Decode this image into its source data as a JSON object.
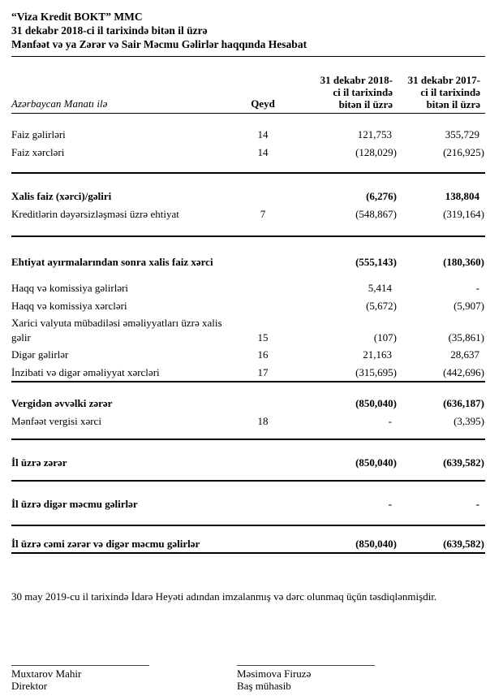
{
  "header": {
    "company": "“Viza Kredit BOKT” MMC",
    "period": "31 dekabr 2018-ci il tarixində bitən il üzrə",
    "statement": "Mənfəət və ya Zərər və Sair Məcmu Gəlirlər haqqında Hesabat"
  },
  "table": {
    "columns": {
      "currency": "Azərbaycan Manatı ilə",
      "note": "Qeyd",
      "y2018": [
        "31 dekabr 2018-",
        "ci il tarixində",
        "bitən il üzrə"
      ],
      "y2017": [
        "31 dekabr 2017-",
        "ci il tarixində",
        "bitən il üzrə"
      ]
    },
    "rows": [
      {
        "label": "Faiz gəlirləri",
        "note": "14",
        "v2018": "121,753",
        "v2017": "355,729"
      },
      {
        "label": "Faiz xərcləri",
        "note": "14",
        "v2018": "(128,029)",
        "v2017": "(216,925)"
      },
      {
        "label": "Xalis faiz (xərci)/gəliri",
        "note": "",
        "v2018": "(6,276)",
        "v2017": "138,804"
      },
      {
        "label": "Kreditlərin dəyərsizləşməsi üzrə ehtiyat",
        "note": "7",
        "v2018": "(548,867)",
        "v2017": "(319,164)"
      },
      {
        "label": "Ehtiyat ayırmalarından sonra xalis faiz xərci",
        "note": "",
        "v2018": "(555,143)",
        "v2017": "(180,360)"
      },
      {
        "label": "Haqq və komissiya gəlirləri",
        "note": "",
        "v2018": "5,414",
        "v2017": "-"
      },
      {
        "label": "Haqq və komissiya xərcləri",
        "note": "",
        "v2018": "(5,672)",
        "v2017": "(5,907)"
      },
      {
        "label": "Xarici valyuta mübadiləsi əməliyyatları üzrə xalis gəlir",
        "note": "15",
        "v2018": "(107)",
        "v2017": "(35,861)"
      },
      {
        "label": "Digər gəlirlər",
        "note": "16",
        "v2018": "21,163",
        "v2017": "28,637"
      },
      {
        "label": "İnzibati və digər əməliyyat xərcləri",
        "note": "17",
        "v2018": "(315,695)",
        "v2017": "(442,696)"
      },
      {
        "label": "Vergidən əvvəlki zərər",
        "note": "",
        "v2018": "(850,040)",
        "v2017": "(636,187)"
      },
      {
        "label": "Mənfəət vergisi xərci",
        "note": "18",
        "v2018": "-",
        "v2017": "(3,395)"
      },
      {
        "label": "İl üzrə zərər",
        "note": "",
        "v2018": "(850,040)",
        "v2017": "(639,582)"
      },
      {
        "label": "İl üzrə digər məcmu gəlirlər",
        "note": "",
        "v2018": "-",
        "v2017": "-"
      },
      {
        "label": "İl üzrə cəmi zərər və digər məcmu gəlirlər",
        "note": "",
        "v2018": "(850,040)",
        "v2017": "(639,582)"
      }
    ]
  },
  "footer": {
    "approval": "30 may 2019-cu il tarixində İdarə Heyəti adından imzalanmış və dərc olunmaq üçün təsdiqlənmişdir.",
    "signatories": [
      {
        "name": "Muxtarov Mahir",
        "title": "Direktor"
      },
      {
        "name": "Məsimova Firuzə",
        "title": "Baş mühasib"
      }
    ]
  }
}
